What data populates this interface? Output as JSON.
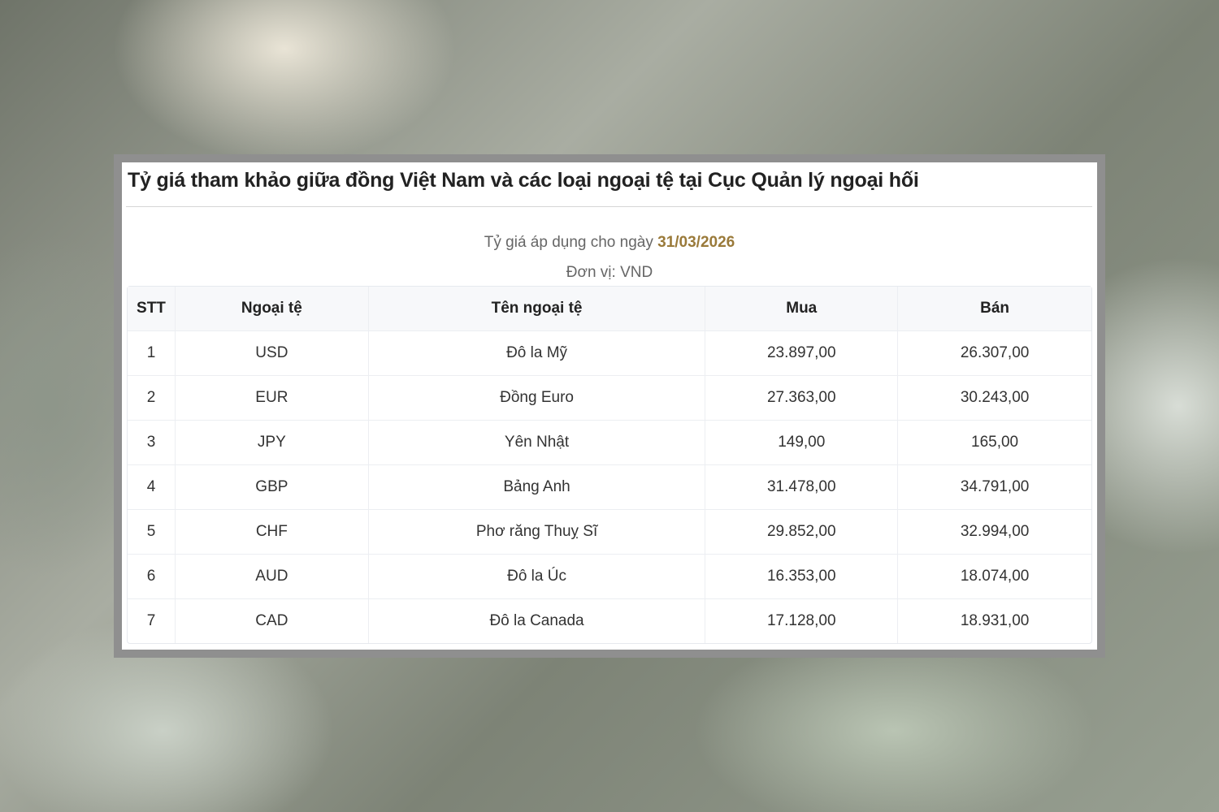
{
  "title": "Tỷ giá tham khảo giữa đồng Việt Nam và các loại ngoại tệ tại Cục Quản lý ngoại hối",
  "date_label": "Tỷ giá áp dụng cho ngày",
  "date": "31/03/2026",
  "unit": "Đơn vị: VND",
  "colors": {
    "date": "#9a7a3a"
  },
  "table": {
    "headers": [
      "STT",
      "Ngoại tệ",
      "Tên ngoại tệ",
      "Mua",
      "Bán"
    ],
    "rows": [
      [
        "1",
        "USD",
        "Đô la Mỹ",
        "23.897,00",
        "26.307,00"
      ],
      [
        "2",
        "EUR",
        "Đồng Euro",
        "27.363,00",
        "30.243,00"
      ],
      [
        "3",
        "JPY",
        "Yên Nhật",
        "149,00",
        "165,00"
      ],
      [
        "4",
        "GBP",
        "Bảng Anh",
        "31.478,00",
        "34.791,00"
      ],
      [
        "5",
        "CHF",
        "Phơ răng Thuỵ Sĩ",
        "29.852,00",
        "32.994,00"
      ],
      [
        "6",
        "AUD",
        "Đô la Úc",
        "16.353,00",
        "18.074,00"
      ],
      [
        "7",
        "CAD",
        "Đô la Canada",
        "17.128,00",
        "18.931,00"
      ]
    ]
  }
}
